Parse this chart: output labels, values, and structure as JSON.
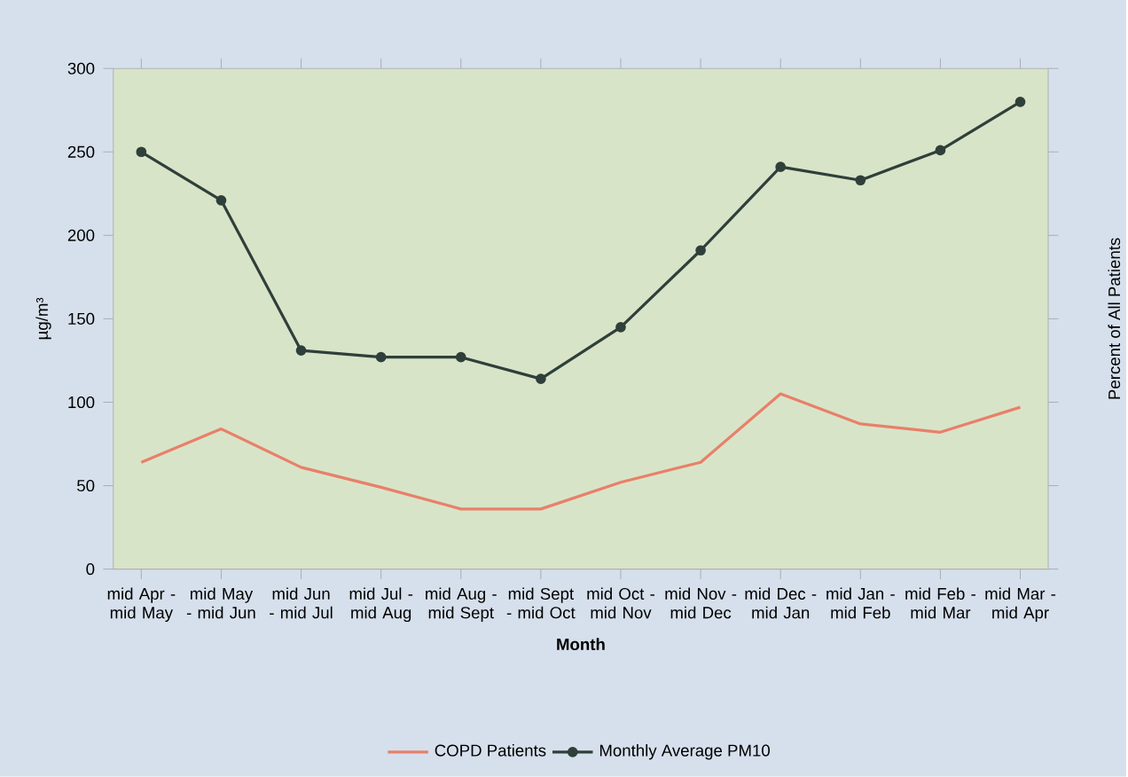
{
  "chart_data": {
    "type": "line",
    "xlabel": "Month",
    "ylabel": "µg/m³",
    "y2label": "Percent of All Patients",
    "categories": [
      "mid Apr - mid May",
      "mid May - mid Jun",
      "mid Jun - mid Jul",
      "mid Jul - mid Aug",
      "mid Aug - mid Sept",
      "mid Sept - mid Oct",
      "mid Oct - mid Nov",
      "mid Nov - mid Dec",
      "mid Dec - mid Jan",
      "mid Jan - mid Feb",
      "mid Feb - mid Mar",
      "mid Mar - mid Apr"
    ],
    "series": [
      {
        "name": "COPD Patients",
        "color": "#e8806a",
        "marker": "none",
        "values": [
          64,
          84,
          61,
          49,
          36,
          36,
          52,
          64,
          105,
          87,
          82,
          97
        ]
      },
      {
        "name": "Monthly Average PM10",
        "color": "#2f3f3a",
        "marker": "circle",
        "values": [
          250,
          221,
          131,
          127,
          127,
          114,
          145,
          191,
          241,
          233,
          251,
          280
        ]
      }
    ],
    "ylim": [
      0,
      300
    ],
    "yticks": [
      0,
      50,
      100,
      150,
      200,
      250,
      300
    ],
    "grid": false,
    "legend": "bottom",
    "line_style": "solid"
  }
}
